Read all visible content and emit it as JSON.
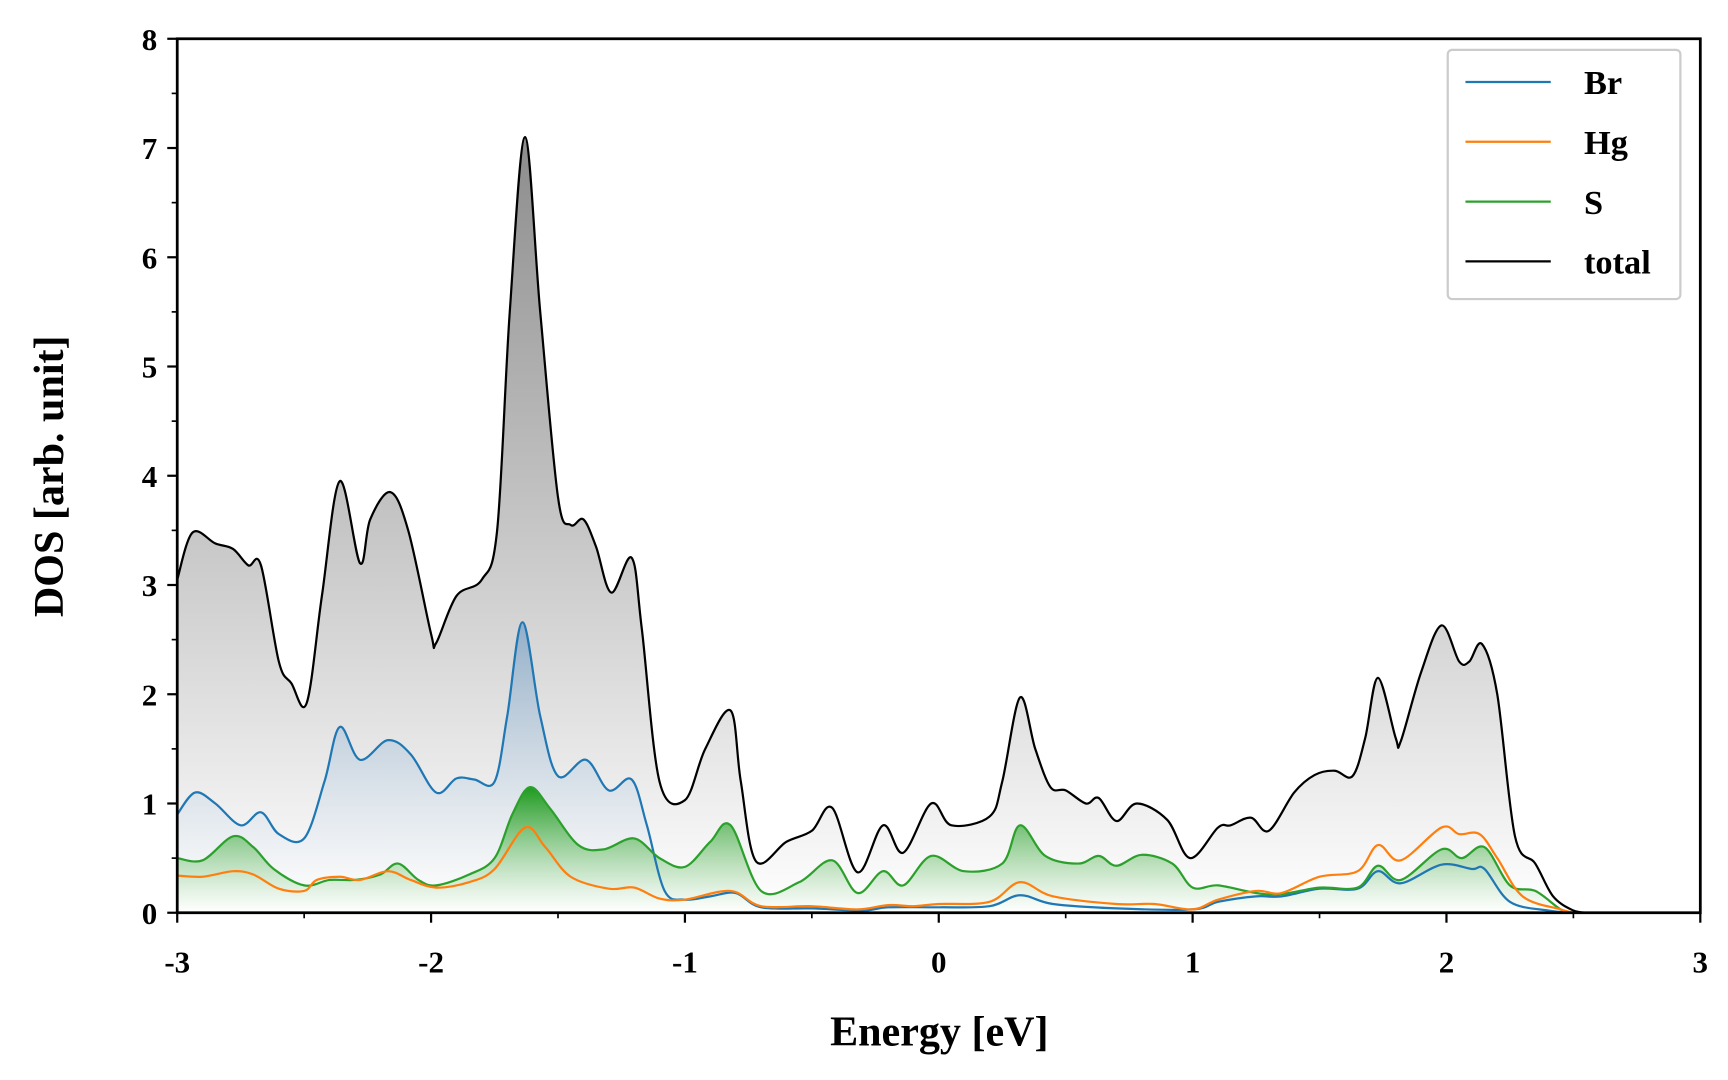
{
  "chart_data": {
    "type": "line",
    "title": "",
    "xlabel": "Energy [eV]",
    "ylabel": "DOS [arb. unit]",
    "xlim": [
      -3,
      3
    ],
    "ylim": [
      0,
      8
    ],
    "xticks": [
      "-3",
      "-2",
      "-1",
      "0",
      "1",
      "2",
      "3"
    ],
    "xtick_values": [
      -3,
      -2,
      -1,
      0,
      1,
      2,
      3
    ],
    "yticks": [
      "0",
      "1",
      "2",
      "3",
      "4",
      "5",
      "6",
      "7",
      "8"
    ],
    "ytick_values": [
      0,
      1,
      2,
      3,
      4,
      5,
      6,
      7,
      8
    ],
    "grid": false,
    "legend_position": "top-right",
    "series": [
      {
        "name": "Br",
        "color": "#1f77b4",
        "x": [
          -3.0,
          -2.93,
          -2.85,
          -2.75,
          -2.67,
          -2.6,
          -2.5,
          -2.42,
          -2.36,
          -2.28,
          -2.17,
          -2.08,
          -1.98,
          -1.9,
          -1.83,
          -1.75,
          -1.7,
          -1.64,
          -1.57,
          -1.5,
          -1.39,
          -1.3,
          -1.21,
          -1.15,
          -1.08,
          -1.0,
          -0.9,
          -0.8,
          -0.7,
          -0.5,
          -0.3,
          -0.2,
          0.0,
          0.2,
          0.32,
          0.45,
          0.7,
          1.0,
          1.1,
          1.25,
          1.35,
          1.5,
          1.65,
          1.73,
          1.82,
          1.98,
          2.1,
          2.15,
          2.25,
          2.4,
          2.5
        ],
        "y": [
          0.9,
          1.1,
          1.0,
          0.8,
          0.92,
          0.72,
          0.68,
          1.2,
          1.7,
          1.4,
          1.58,
          1.45,
          1.1,
          1.23,
          1.22,
          1.2,
          1.8,
          2.66,
          1.8,
          1.25,
          1.4,
          1.12,
          1.22,
          0.8,
          0.2,
          0.12,
          0.15,
          0.18,
          0.05,
          0.04,
          0.02,
          0.05,
          0.05,
          0.06,
          0.16,
          0.08,
          0.04,
          0.03,
          0.1,
          0.15,
          0.15,
          0.22,
          0.22,
          0.38,
          0.27,
          0.44,
          0.4,
          0.4,
          0.1,
          0.02,
          0.0
        ]
      },
      {
        "name": "Hg",
        "color": "#ff7f0e",
        "x": [
          -3.0,
          -2.9,
          -2.78,
          -2.7,
          -2.6,
          -2.5,
          -2.45,
          -2.36,
          -2.28,
          -2.17,
          -2.08,
          -1.98,
          -1.85,
          -1.75,
          -1.63,
          -1.55,
          -1.45,
          -1.3,
          -1.2,
          -1.1,
          -1.0,
          -0.82,
          -0.7,
          -0.5,
          -0.32,
          -0.2,
          -0.1,
          0.0,
          0.2,
          0.32,
          0.45,
          0.7,
          0.85,
          1.0,
          1.1,
          1.25,
          1.35,
          1.5,
          1.65,
          1.73,
          1.82,
          1.98,
          2.05,
          2.13,
          2.2,
          2.3,
          2.45,
          2.5
        ],
        "y": [
          0.34,
          0.33,
          0.38,
          0.35,
          0.22,
          0.2,
          0.3,
          0.33,
          0.3,
          0.38,
          0.3,
          0.23,
          0.28,
          0.4,
          0.78,
          0.6,
          0.33,
          0.22,
          0.23,
          0.13,
          0.12,
          0.2,
          0.06,
          0.06,
          0.03,
          0.07,
          0.06,
          0.08,
          0.1,
          0.28,
          0.15,
          0.08,
          0.08,
          0.03,
          0.12,
          0.2,
          0.18,
          0.33,
          0.38,
          0.62,
          0.48,
          0.78,
          0.72,
          0.72,
          0.5,
          0.15,
          0.03,
          0.0
        ]
      },
      {
        "name": "S",
        "color": "#2ca02c",
        "x": [
          -3.0,
          -2.9,
          -2.78,
          -2.7,
          -2.62,
          -2.5,
          -2.4,
          -2.3,
          -2.2,
          -2.13,
          -2.05,
          -1.98,
          -1.85,
          -1.75,
          -1.68,
          -1.61,
          -1.53,
          -1.42,
          -1.32,
          -1.2,
          -1.1,
          -1.0,
          -0.9,
          -0.82,
          -0.7,
          -0.55,
          -0.42,
          -0.32,
          -0.22,
          -0.14,
          -0.03,
          0.1,
          0.25,
          0.32,
          0.42,
          0.55,
          0.63,
          0.7,
          0.8,
          0.92,
          1.0,
          1.1,
          1.25,
          1.35,
          1.5,
          1.65,
          1.73,
          1.82,
          1.98,
          2.06,
          2.15,
          2.25,
          2.35,
          2.45,
          2.5
        ],
        "y": [
          0.5,
          0.48,
          0.7,
          0.6,
          0.4,
          0.25,
          0.3,
          0.3,
          0.35,
          0.45,
          0.3,
          0.25,
          0.35,
          0.5,
          0.9,
          1.15,
          0.95,
          0.62,
          0.58,
          0.68,
          0.5,
          0.42,
          0.65,
          0.8,
          0.2,
          0.28,
          0.48,
          0.18,
          0.38,
          0.25,
          0.52,
          0.38,
          0.45,
          0.8,
          0.52,
          0.45,
          0.52,
          0.43,
          0.53,
          0.45,
          0.23,
          0.25,
          0.18,
          0.17,
          0.23,
          0.23,
          0.43,
          0.3,
          0.58,
          0.5,
          0.6,
          0.25,
          0.2,
          0.03,
          0.0
        ]
      },
      {
        "name": "total",
        "color": "#000000",
        "x": [
          -3.0,
          -2.94,
          -2.85,
          -2.78,
          -2.72,
          -2.67,
          -2.6,
          -2.55,
          -2.49,
          -2.43,
          -2.36,
          -2.28,
          -2.24,
          -2.16,
          -2.09,
          -2.0,
          -1.98,
          -1.9,
          -1.8,
          -1.74,
          -1.69,
          -1.63,
          -1.57,
          -1.5,
          -1.45,
          -1.4,
          -1.35,
          -1.29,
          -1.21,
          -1.17,
          -1.1,
          -1.0,
          -0.92,
          -0.82,
          -0.78,
          -0.72,
          -0.6,
          -0.5,
          -0.42,
          -0.32,
          -0.22,
          -0.14,
          -0.03,
          0.05,
          0.2,
          0.25,
          0.32,
          0.38,
          0.44,
          0.5,
          0.58,
          0.63,
          0.7,
          0.78,
          0.9,
          0.99,
          1.1,
          1.15,
          1.23,
          1.3,
          1.4,
          1.48,
          1.56,
          1.63,
          1.68,
          1.73,
          1.8,
          1.82,
          1.9,
          1.98,
          2.05,
          2.09,
          2.14,
          2.2,
          2.27,
          2.35,
          2.42,
          2.5,
          2.55
        ],
        "y": [
          3.05,
          3.48,
          3.38,
          3.33,
          3.18,
          3.18,
          2.3,
          2.1,
          1.92,
          2.9,
          3.95,
          3.2,
          3.6,
          3.85,
          3.5,
          2.55,
          2.47,
          2.9,
          3.05,
          3.5,
          5.5,
          7.1,
          5.5,
          3.8,
          3.55,
          3.6,
          3.35,
          2.93,
          3.25,
          2.6,
          1.2,
          1.03,
          1.5,
          1.85,
          1.2,
          0.47,
          0.65,
          0.75,
          0.96,
          0.37,
          0.8,
          0.55,
          1.0,
          0.8,
          0.88,
          1.2,
          1.97,
          1.5,
          1.15,
          1.12,
          1.0,
          1.05,
          0.84,
          1.0,
          0.85,
          0.5,
          0.78,
          0.8,
          0.87,
          0.75,
          1.1,
          1.26,
          1.3,
          1.25,
          1.6,
          2.15,
          1.6,
          1.57,
          2.2,
          2.63,
          2.3,
          2.3,
          2.46,
          2.0,
          0.7,
          0.45,
          0.15,
          0.02,
          0.0
        ]
      }
    ]
  }
}
